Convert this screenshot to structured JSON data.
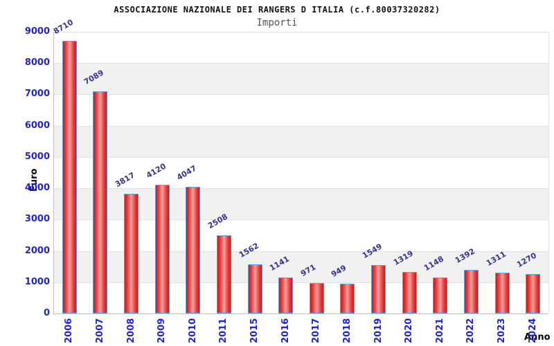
{
  "header": {
    "title": "ASSOCIAZIONE NAZIONALE DEI RANGERS D ITALIA (c.f.80037320282)",
    "subtitle": "Importi"
  },
  "chart_data": {
    "type": "bar",
    "title": "ASSOCIAZIONE NAZIONALE DEI RANGERS D ITALIA (c.f.80037320282)",
    "subtitle": "Importi",
    "xlabel": "Anno",
    "ylabel": "Euro",
    "categories": [
      "2006",
      "2007",
      "2008",
      "2009",
      "2010",
      "2011",
      "2015",
      "2016",
      "2017",
      "2018",
      "2019",
      "2020",
      "2021",
      "2022",
      "2023",
      "2024"
    ],
    "values": [
      8710,
      7089,
      3817,
      4120,
      4047,
      2508,
      1562,
      1141,
      971,
      949,
      1549,
      1319,
      1148,
      1392,
      1311,
      1270
    ],
    "ylim": [
      0,
      9000
    ],
    "yticks": [
      0,
      1000,
      2000,
      3000,
      4000,
      5000,
      6000,
      7000,
      8000,
      9000
    ],
    "grid": true,
    "legend": "none",
    "value_label_rotation_deg": -30,
    "xtick_rotation_deg": -90,
    "colors": {
      "tick_label": "#2323cd",
      "value_label": "#35358c",
      "bar_border": "#64a0dc",
      "bar_edge_red": "#c41a1a",
      "bar_mid_red": "#e84040",
      "bar_center_light": "#f7a0a0",
      "band_gray": "#f1f1f1",
      "gridline": "#e0e0e0",
      "axis_line": "#bdbdbd",
      "title": "#111111",
      "subtitle": "#555555",
      "axis_title": "#333333"
    }
  }
}
